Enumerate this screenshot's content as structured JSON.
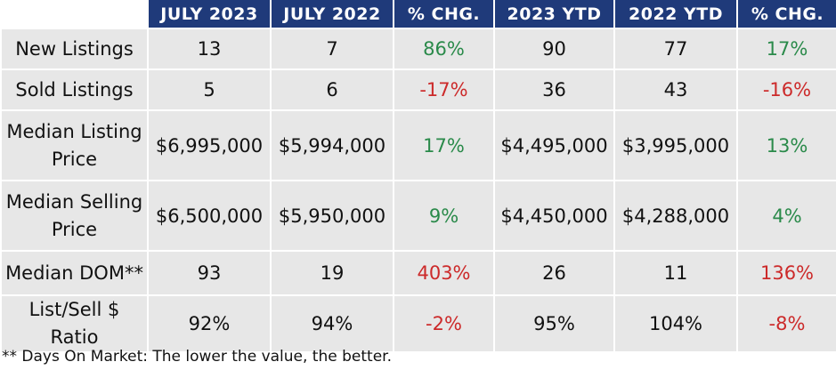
{
  "headers": [
    "",
    "JULY 2023",
    "JULY 2022",
    "% CHG.",
    "2023 YTD",
    "2022 YTD",
    "% CHG."
  ],
  "rows": [
    {
      "label": "New Listings",
      "cells": [
        "13",
        "7",
        "86%",
        "90",
        "77",
        "17%"
      ],
      "chg_tone": [
        "positive",
        "positive"
      ]
    },
    {
      "label": "Sold Listings",
      "cells": [
        "5",
        "6",
        "-17%",
        "36",
        "43",
        "-16%"
      ],
      "chg_tone": [
        "negative",
        "negative"
      ]
    },
    {
      "label": "Median Listing Price",
      "cells": [
        "$6,995,000",
        "$5,994,000",
        "17%",
        "$4,495,000",
        "$3,995,000",
        "13%"
      ],
      "chg_tone": [
        "positive",
        "positive"
      ]
    },
    {
      "label": "Median Selling Price",
      "cells": [
        "$6,500,000",
        "$5,950,000",
        "9%",
        "$4,450,000",
        "$4,288,000",
        "4%"
      ],
      "chg_tone": [
        "positive",
        "positive"
      ]
    },
    {
      "label": "Median DOM**",
      "cells": [
        "93",
        "19",
        "403%",
        "26",
        "11",
        "136%"
      ],
      "chg_tone": [
        "negative",
        "negative"
      ]
    },
    {
      "label": "List/Sell $ Ratio",
      "cells": [
        "92%",
        "94%",
        "-2%",
        "95%",
        "104%",
        "-8%"
      ],
      "chg_tone": [
        "negative",
        "negative"
      ]
    }
  ],
  "footnote": "** Days On Market: The lower the value, the better.",
  "colors": {
    "header_bg": "#1f3a7a",
    "row_bg": "#e7e7e7",
    "positive": "#2a8a4a",
    "negative": "#cc2a2a"
  }
}
